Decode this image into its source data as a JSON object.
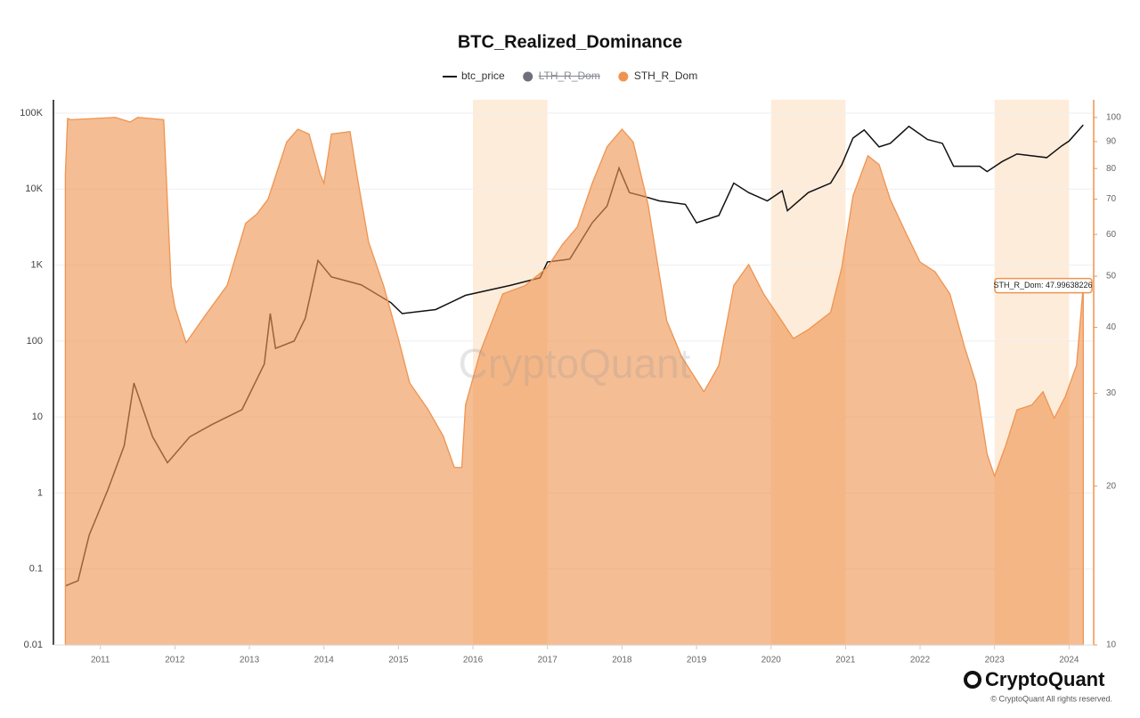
{
  "chart_data": {
    "type": "line_area",
    "title": "BTC_Realized_Dominance",
    "watermark": "CryptoQuant",
    "branding": {
      "logo": "CryptoQuant",
      "copyright": "© CryptoQuant All rights reserved."
    },
    "annotation": "STH_R_Dom: 47.99638226",
    "log_scale": true,
    "grid": true,
    "xlim": [
      2010.37,
      2024.33
    ],
    "xticks": [
      2011,
      2012,
      2013,
      2014,
      2015,
      2016,
      2017,
      2018,
      2019,
      2020,
      2021,
      2022,
      2023,
      2024
    ],
    "ylim": [
      0.01,
      150000
    ],
    "yticks": [
      {
        "value": 100000,
        "label": "100K"
      },
      {
        "value": 10000,
        "label": "10K"
      },
      {
        "value": 1000,
        "label": "1K"
      },
      100,
      10,
      1,
      0.1,
      0.01
    ],
    "y2lim": [
      10,
      108
    ],
    "y2ticks": [
      10,
      20,
      30,
      40,
      50,
      60,
      70,
      80,
      90,
      100
    ],
    "shaded_ranges": [
      [
        2016,
        2017
      ],
      [
        2020,
        2021
      ],
      [
        2023,
        2024
      ]
    ],
    "shade_color": "#fde6cf",
    "hidden_series": [
      {
        "name": "LTH_R_Dom",
        "color": "#6e707c"
      }
    ],
    "series": [
      {
        "name": "btc_price",
        "color": "#111111",
        "axis": "y",
        "x": [
          2010.53,
          2010.7,
          2010.85,
          2011.1,
          2011.32,
          2011.45,
          2011.7,
          2011.9,
          2012.2,
          2012.5,
          2012.9,
          2013.2,
          2013.28,
          2013.35,
          2013.6,
          2013.75,
          2013.92,
          2014.1,
          2014.5,
          2014.9,
          2015.05,
          2015.5,
          2015.9,
          2016.5,
          2016.9,
          2017.0,
          2017.3,
          2017.6,
          2017.8,
          2017.96,
          2018.1,
          2018.3,
          2018.5,
          2018.85,
          2019.0,
          2019.3,
          2019.5,
          2019.7,
          2019.95,
          2020.15,
          2020.22,
          2020.5,
          2020.8,
          2020.95,
          2021.1,
          2021.25,
          2021.45,
          2021.6,
          2021.85,
          2022.1,
          2022.3,
          2022.45,
          2022.8,
          2022.9,
          2023.1,
          2023.3,
          2023.7,
          2023.9,
          2024.0,
          2024.19
        ],
        "values": [
          0.06,
          0.07,
          0.28,
          1.1,
          4.2,
          28,
          5.5,
          2.5,
          5.5,
          8,
          12.5,
          50,
          230,
          80,
          100,
          200,
          1150,
          700,
          550,
          320,
          230,
          260,
          400,
          540,
          680,
          1100,
          1200,
          3600,
          6000,
          19000,
          9000,
          8000,
          7000,
          6300,
          3600,
          4500,
          12000,
          9000,
          7000,
          9500,
          5200,
          9000,
          12000,
          21000,
          47000,
          60000,
          36000,
          40000,
          67000,
          45000,
          40000,
          20000,
          20000,
          17000,
          23000,
          29000,
          26000,
          37000,
          43000,
          70000
        ]
      },
      {
        "name": "STH_R_Dom",
        "color": "#ef9450",
        "axis": "y2",
        "x": [
          2010.53,
          2010.56,
          2010.6,
          2011.2,
          2011.4,
          2011.5,
          2011.85,
          2011.95,
          2012.0,
          2012.15,
          2012.4,
          2012.7,
          2012.95,
          2013.1,
          2013.25,
          2013.5,
          2013.65,
          2013.8,
          2013.95,
          2014.0,
          2014.1,
          2014.35,
          2014.45,
          2014.6,
          2014.8,
          2015.0,
          2015.15,
          2015.4,
          2015.6,
          2015.75,
          2015.85,
          2015.9,
          2016.1,
          2016.4,
          2016.7,
          2017.0,
          2017.2,
          2017.4,
          2017.6,
          2017.8,
          2018.0,
          2018.15,
          2018.35,
          2018.6,
          2018.8,
          2019.1,
          2019.3,
          2019.5,
          2019.7,
          2019.9,
          2020.1,
          2020.3,
          2020.5,
          2020.8,
          2020.95,
          2021.1,
          2021.3,
          2021.45,
          2021.6,
          2021.8,
          2022.0,
          2022.2,
          2022.4,
          2022.6,
          2022.75,
          2022.9,
          2023.0,
          2023.15,
          2023.3,
          2023.5,
          2023.65,
          2023.8,
          2023.95,
          2024.1,
          2024.15,
          2024.19
        ],
        "values": [
          78,
          99.5,
          99,
          100,
          98,
          100,
          99,
          48,
          43.7,
          37.4,
          42,
          48,
          63,
          65.6,
          70,
          89.8,
          95,
          93,
          78,
          75,
          93,
          94,
          76.7,
          58,
          48,
          38,
          31.4,
          27.9,
          24.9,
          21.7,
          21.7,
          28.5,
          36,
          46.3,
          48,
          52,
          57.4,
          62,
          75,
          88,
          95,
          89.8,
          68.4,
          41.2,
          35.2,
          30.2,
          33.9,
          48,
          52.6,
          46.3,
          42,
          38.1,
          39.6,
          42.7,
          52,
          71,
          84.6,
          81.4,
          69.9,
          60.8,
          53.2,
          51,
          46.3,
          36.6,
          31.4,
          23,
          20.9,
          23.9,
          27.9,
          28.5,
          30.2,
          26.9,
          29.6,
          33.9,
          41,
          47.99638226
        ]
      }
    ]
  }
}
